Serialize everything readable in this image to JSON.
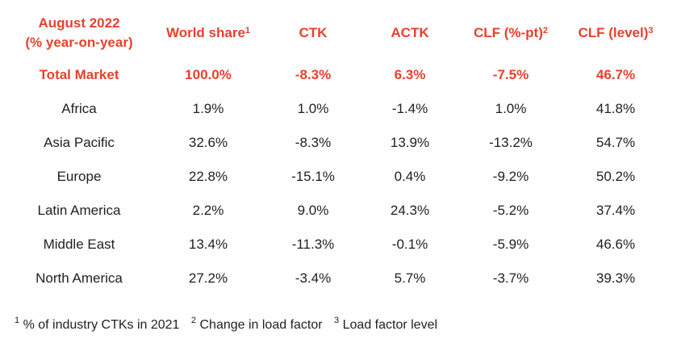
{
  "header": {
    "period_line1": "August 2022",
    "period_line2": "(% year-on-year)",
    "world_share": "World share",
    "world_share_sup": "1",
    "ctk": "CTK",
    "actk": "ACTK",
    "clf_pt": "CLF (%-pt)",
    "clf_pt_sup": "2",
    "clf_level": "CLF (level)",
    "clf_level_sup": "3"
  },
  "rows": [
    {
      "region": "Total Market",
      "world_share": "100.0%",
      "ctk": "-8.3%",
      "actk": "6.3%",
      "clf_pt": "-7.5%",
      "clf_level": "46.7%"
    },
    {
      "region": "Africa",
      "world_share": "1.9%",
      "ctk": "1.0%",
      "actk": "-1.4%",
      "clf_pt": "1.0%",
      "clf_level": "41.8%"
    },
    {
      "region": "Asia Pacific",
      "world_share": "32.6%",
      "ctk": "-8.3%",
      "actk": "13.9%",
      "clf_pt": "-13.2%",
      "clf_level": "54.7%"
    },
    {
      "region": "Europe",
      "world_share": "22.8%",
      "ctk": "-15.1%",
      "actk": "0.4%",
      "clf_pt": "-9.2%",
      "clf_level": "50.2%"
    },
    {
      "region": "Latin America",
      "world_share": "2.2%",
      "ctk": "9.0%",
      "actk": "24.3%",
      "clf_pt": "-5.2%",
      "clf_level": "37.4%"
    },
    {
      "region": "Middle East",
      "world_share": "13.4%",
      "ctk": "-11.3%",
      "actk": "-0.1%",
      "clf_pt": "-5.9%",
      "clf_level": "46.6%"
    },
    {
      "region": "North America",
      "world_share": "27.2%",
      "ctk": "-3.4%",
      "actk": "5.7%",
      "clf_pt": "-3.7%",
      "clf_level": "39.3%"
    }
  ],
  "footnotes": [
    {
      "sup": "1",
      "text": "% of industry CTKs in 2021"
    },
    {
      "sup": "2",
      "text": "Change in load factor"
    },
    {
      "sup": "3",
      "text": "Load factor level"
    }
  ],
  "colors": {
    "accent": "#e8412c",
    "text": "#202124"
  }
}
